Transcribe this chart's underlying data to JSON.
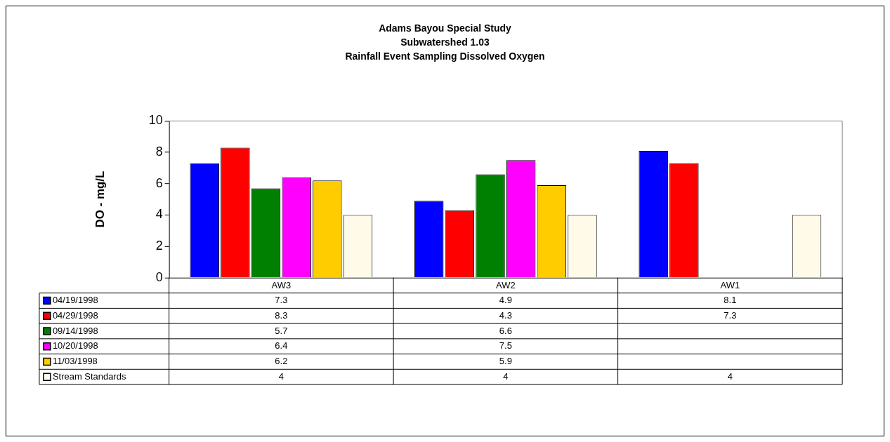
{
  "chart_data": {
    "type": "bar",
    "title": "Adams Bayou Special Study\nSubwatershed 1.03\nRainfall Event Sampling Dissolved Oxygen",
    "ylabel": "DO - mg/L",
    "categories": [
      "AW3",
      "AW2",
      "AW1"
    ],
    "series": [
      {
        "name": "04/19/1998",
        "color": "#0000ff",
        "values": [
          7.3,
          4.9,
          8.1
        ]
      },
      {
        "name": "04/29/1998",
        "color": "#ff0000",
        "values": [
          8.3,
          4.3,
          7.3
        ]
      },
      {
        "name": "09/14/1998",
        "color": "#008000",
        "values": [
          5.7,
          6.6,
          null
        ]
      },
      {
        "name": "10/20/1998",
        "color": "#ff00ff",
        "values": [
          6.4,
          7.5,
          null
        ]
      },
      {
        "name": "11/03/1998",
        "color": "#ffcc00",
        "values": [
          6.2,
          5.9,
          null
        ]
      },
      {
        "name": "Stream Standards",
        "color": "#fffbe8",
        "values": [
          4,
          4,
          4
        ]
      }
    ],
    "ylim": [
      0,
      10
    ],
    "yticks": [
      0,
      2,
      4,
      6,
      8,
      10
    ],
    "grid": false,
    "legend": "bottom",
    "data_labels": true
  }
}
